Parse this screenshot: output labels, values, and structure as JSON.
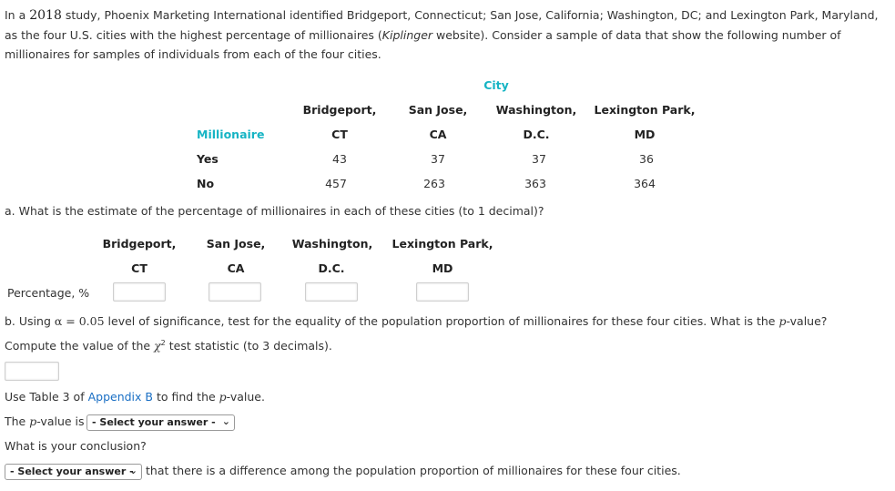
{
  "intro": {
    "part1": "In a ",
    "year": "2018",
    "part2": " study, Phoenix Marketing International identified Bridgeport, Connecticut; San Jose, California; Washington, DC; and Lexington Park, Maryland, as the four U.S. cities with the highest percentage of millionaires (",
    "source": "Kiplinger",
    "part3": " website). Consider a sample of data that show the following number of millionaires for samples of individuals from each of the four cities."
  },
  "table": {
    "city_header": "City",
    "row_header": "Millionaire",
    "cities": [
      {
        "line1": "Bridgeport,",
        "line2": "CT"
      },
      {
        "line1": "San Jose,",
        "line2": "CA"
      },
      {
        "line1": "Washington,",
        "line2": "D.C."
      },
      {
        "line1": "Lexington Park,",
        "line2": "MD"
      }
    ],
    "rows": [
      {
        "label": "Yes",
        "values": [
          "43",
          "37",
          "37",
          "36"
        ]
      },
      {
        "label": "No",
        "values": [
          "457",
          "263",
          "363",
          "364"
        ]
      }
    ]
  },
  "part_a": {
    "question": "a. What is the estimate of the percentage of millionaires in each of these cities (to 1 decimal)?",
    "cities": [
      {
        "line1": "Bridgeport,",
        "line2": "CT"
      },
      {
        "line1": "San Jose,",
        "line2": "CA"
      },
      {
        "line1": "Washington,",
        "line2": "D.C."
      },
      {
        "line1": "Lexington Park,",
        "line2": "MD"
      }
    ],
    "row_label": "Percentage, %",
    "inputs": [
      "",
      "",
      "",
      ""
    ]
  },
  "part_b": {
    "q_prefix": "b. Using ",
    "alpha": "α = 0.05",
    "q_mid": " level of significance, test for the equality of the population proportion of millionaires for these four cities. What is the ",
    "p": "p",
    "q_end": "-value?",
    "compute_prefix": "Compute the value of the ",
    "chi": "χ",
    "chi_sup": "2",
    "compute_end": " test statistic (to 3 decimals).",
    "chi_input": "",
    "use_table_prefix": "Use Table 3 of ",
    "appendix_link": "Appendix B",
    "use_table_mid": " to find the ",
    "use_table_end": "-value.",
    "pvalue_prefix": "The ",
    "pvalue_mid": "-value is",
    "pvalue_select": "- Select your answer -",
    "conclusion_q": "What is your conclusion?",
    "conclusion_select": "- Select your answer -",
    "conclusion_text": "that there is a difference among the population proportion of millionaires for these four cities."
  }
}
